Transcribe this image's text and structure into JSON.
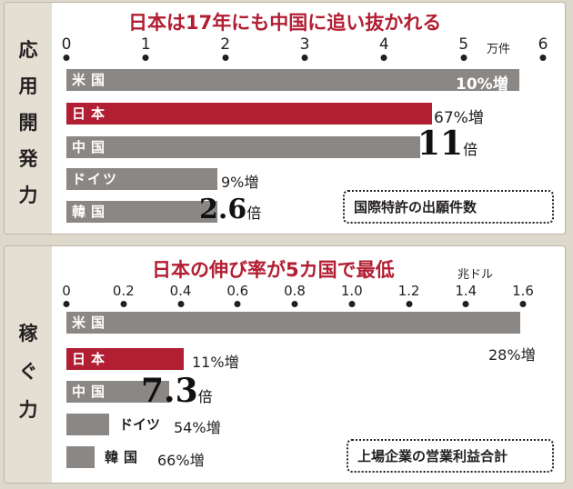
{
  "chart_data": [
    {
      "type": "bar",
      "title": "日本は17年にも中国に追い抜かれる",
      "side_label": [
        "応",
        "用",
        "開",
        "発",
        "力"
      ],
      "unit": "万件",
      "xlim": [
        0,
        6
      ],
      "ticks": [
        "0",
        "1",
        "2",
        "3",
        "4",
        "5",
        "6"
      ],
      "categories": [
        "米国",
        "日本",
        "中国",
        "ドイツ",
        "韓国"
      ],
      "values": [
        5.7,
        4.6,
        4.45,
        1.9,
        1.9
      ],
      "highlight": "日本",
      "annotations": [
        "10%増",
        "67%増",
        "11倍",
        "9%増",
        "2.6倍"
      ],
      "note": "国際特許の出願件数"
    },
    {
      "type": "bar",
      "title": "日本の伸び率が5カ国で最低",
      "side_label": [
        "稼",
        "ぐ",
        "力"
      ],
      "unit": "兆ドル",
      "xlim": [
        0,
        1.6
      ],
      "ticks": [
        "0",
        "0.2",
        "0.4",
        "0.6",
        "0.8",
        "1.0",
        "1.2",
        "1.4",
        "1.6"
      ],
      "categories": [
        "米国",
        "日本",
        "中国",
        "ドイツ",
        "韓国"
      ],
      "values": [
        1.59,
        0.41,
        0.36,
        0.15,
        0.1
      ],
      "highlight": "日本",
      "annotations": [
        "28%増",
        "11%増",
        "7.3倍",
        "54%増",
        "66%増"
      ],
      "note": "上場企業の営業利益合計"
    }
  ],
  "colors": {
    "gray_bar": "#8a8785",
    "red_bar": "#b21e32",
    "side_bg": "#e4dfd3"
  }
}
